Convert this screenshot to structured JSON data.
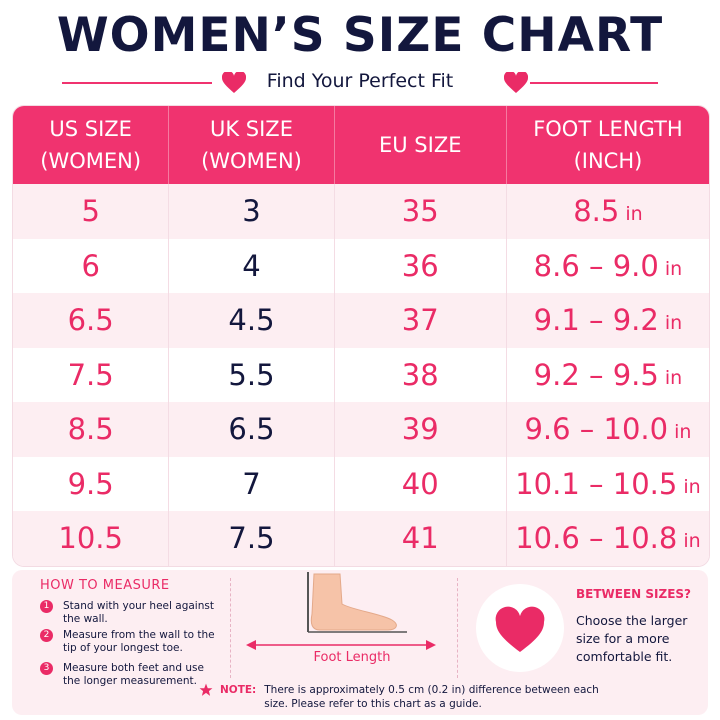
{
  "header": {
    "title": "WOMEN’S SIZE CHART",
    "subtitle": "Find Your Perfect Fit"
  },
  "table": {
    "columns": [
      "US SIZE\n(WOMEN)",
      "UK SIZE\n(WOMEN)",
      "EU SIZE",
      "FOOT LENGTH\n(INCH)"
    ],
    "rows": [
      [
        "5",
        "3",
        "35",
        "8.5",
        "in"
      ],
      [
        "6",
        "4",
        "36",
        "8.6 – 9.0",
        "in"
      ],
      [
        "6.5",
        "4.5",
        "37",
        "9.1 – 9.2",
        "in"
      ],
      [
        "7.5",
        "5.5",
        "38",
        "9.2 – 9.5",
        "in"
      ],
      [
        "8.5",
        "6.5",
        "39",
        "9.6 – 10.0",
        "in"
      ],
      [
        "9.5",
        "7",
        "40",
        "10.1 – 10.5",
        "in"
      ],
      [
        "10.5",
        "7.5",
        "41",
        "10.6 – 10.8",
        "in"
      ]
    ]
  },
  "how_to_measure": {
    "title": "HOW TO MEASURE",
    "steps": [
      {
        "number": "1",
        "text": "Stand with your heel against the wall."
      },
      {
        "number": "2",
        "text": "Measure from the wall to the tip of your longest toe."
      },
      {
        "number": "3",
        "text": "Measure both feet and use the longer measurement."
      }
    ],
    "diagram_label": "Foot Length"
  },
  "between_sizes": {
    "title": "BETWEEN SIZES?",
    "text": "Choose the larger size for a more comfortable fit."
  },
  "note": {
    "label": "NOTE:",
    "text": "There is approximately 0.5 cm (0.2 in) difference between each size. Please refer to this chart as a guide."
  }
}
